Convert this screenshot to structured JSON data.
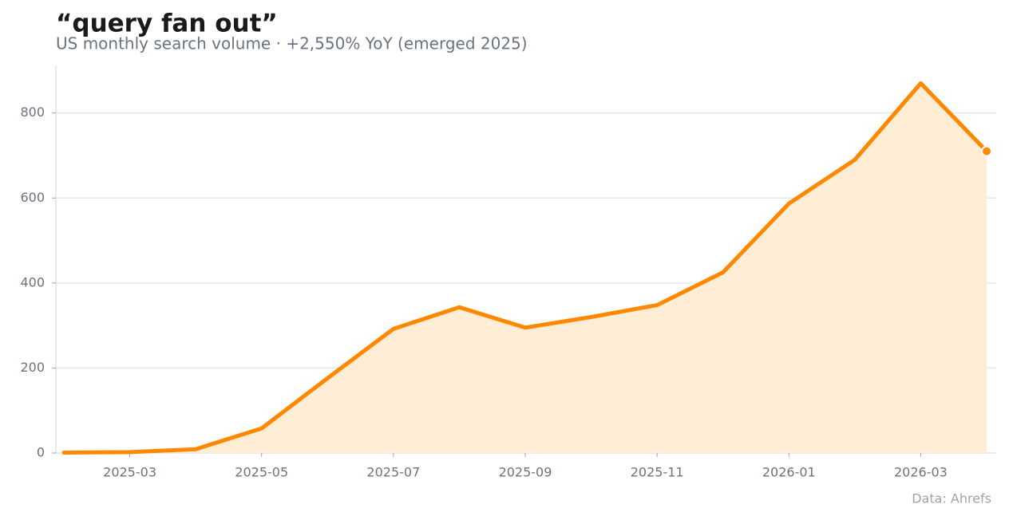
{
  "chart_data": {
    "type": "area-line",
    "title": "“query fan out”",
    "subtitle": "US monthly search volume · +2,550% YoY (emerged 2025)",
    "source": "Data: Ahrefs",
    "x": [
      "2025-02",
      "2025-03",
      "2025-04",
      "2025-05",
      "2025-06",
      "2025-07",
      "2025-08",
      "2025-09",
      "2025-10",
      "2025-11",
      "2025-12",
      "2026-01",
      "2026-02",
      "2026-03",
      "2026-04"
    ],
    "values": [
      1,
      2,
      9,
      58,
      176,
      292,
      343,
      295,
      320,
      348,
      425,
      587,
      690,
      870,
      710
    ],
    "color": "#ff8800",
    "fill_color": "#ffedd5",
    "xlim": [
      "2025-02",
      "2026-04"
    ],
    "xticks": [
      "2025-03",
      "2025-05",
      "2025-07",
      "2025-09",
      "2025-11",
      "2026-01",
      "2026-03"
    ],
    "ylim": [
      0,
      912
    ],
    "yticks": [
      0,
      200,
      400,
      600,
      800
    ],
    "grid": true
  }
}
